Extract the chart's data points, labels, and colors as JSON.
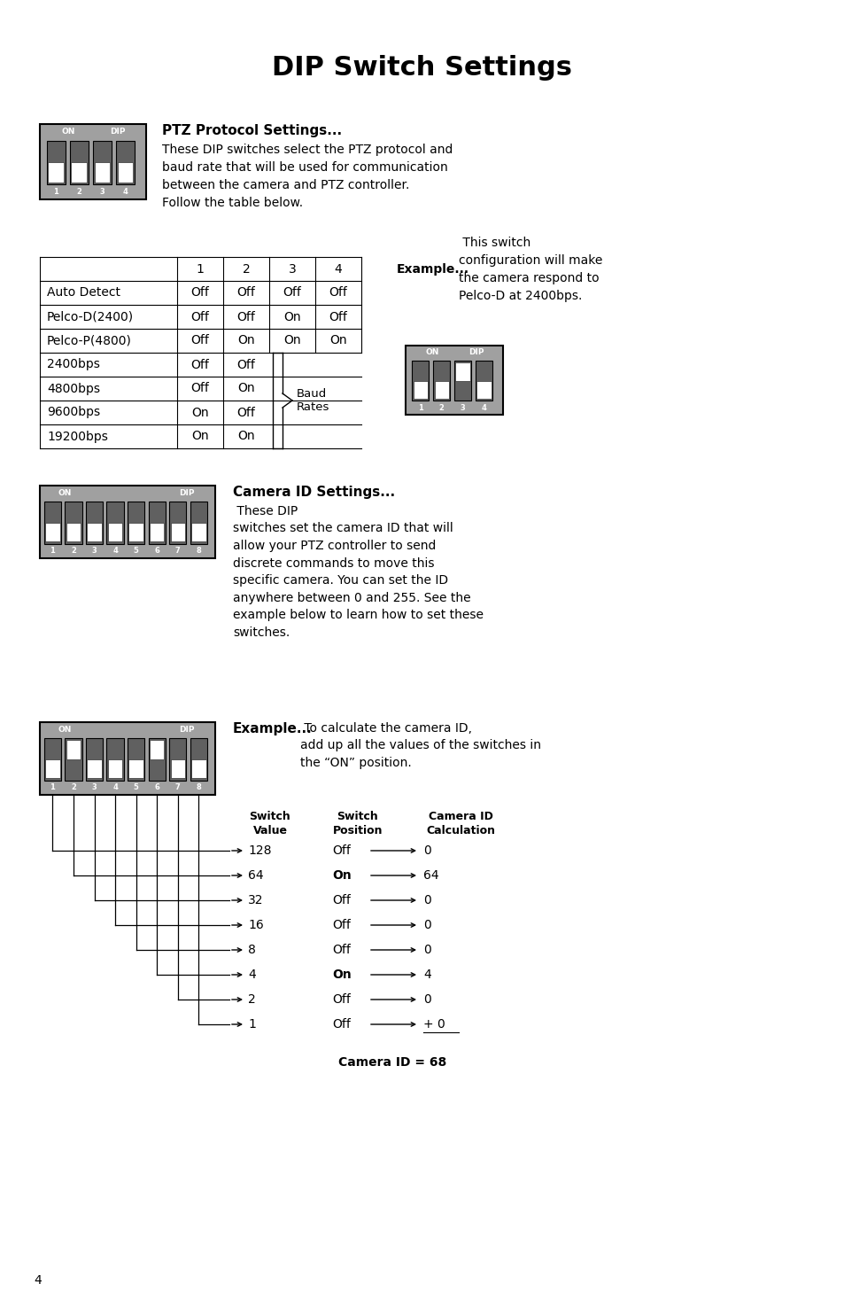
{
  "title": "DIP Switch Settings",
  "bg_color": "#ffffff",
  "ptz_bold": "PTZ Protocol Settings...",
  "ptz_text": "These DIP switches select the PTZ protocol and\nbaud rate that will be used for communication\nbetween the camera and PTZ controller.\nFollow the table below.",
  "table_headers": [
    "",
    "1",
    "2",
    "3",
    "4"
  ],
  "table_rows": [
    [
      "Auto Detect",
      "Off",
      "Off",
      "Off",
      "Off"
    ],
    [
      "Pelco-D(2400)",
      "Off",
      "Off",
      "On",
      "Off"
    ],
    [
      "Pelco-P(4800)",
      "Off",
      "On",
      "On",
      "On"
    ],
    [
      "2400bps",
      "Off",
      "Off",
      "",
      ""
    ],
    [
      "4800bps",
      "Off",
      "On",
      "",
      ""
    ],
    [
      "9600bps",
      "On",
      "Off",
      "",
      ""
    ],
    [
      "19200bps",
      "On",
      "On",
      "",
      ""
    ]
  ],
  "baud_label": "Baud\nRates",
  "ex1_bold": "Example...",
  "ex1_text": " This switch\nconfiguration will make\nthe camera respond to\nPelco-D at 2400bps.",
  "cam_bold": "Camera ID Settings...",
  "cam_text": " These DIP\nswitches set the camera ID that will\nallow your PTZ controller to send\ndiscrete commands to move this\nspecific camera. You can set the ID\nanywhere between 0 and 255. See the\nexample below to learn how to set these\nswitches.",
  "ex2_bold": "Example...",
  "ex2_text": " To calculate the camera ID,\nadd up all the values of the switches in\nthe “ON” position.",
  "sw_hdr1": "Switch\nValue",
  "sw_hdr2": "Switch\nPosition",
  "sw_hdr3": "Camera ID\nCalculation",
  "switch_rows": [
    [
      "128",
      "Off",
      "0"
    ],
    [
      "64",
      "On",
      "64"
    ],
    [
      "32",
      "Off",
      "0"
    ],
    [
      "16",
      "Off",
      "0"
    ],
    [
      "8",
      "Off",
      "0"
    ],
    [
      "4",
      "On",
      "4"
    ],
    [
      "2",
      "Off",
      "0"
    ],
    [
      "1",
      "Off",
      "+ 0"
    ]
  ],
  "camera_id_result": "Camera ID = 68",
  "page_number": "4",
  "dip_bg": "#a0a0a0",
  "dip_slot": "#606060",
  "btn_color": "#ffffff"
}
